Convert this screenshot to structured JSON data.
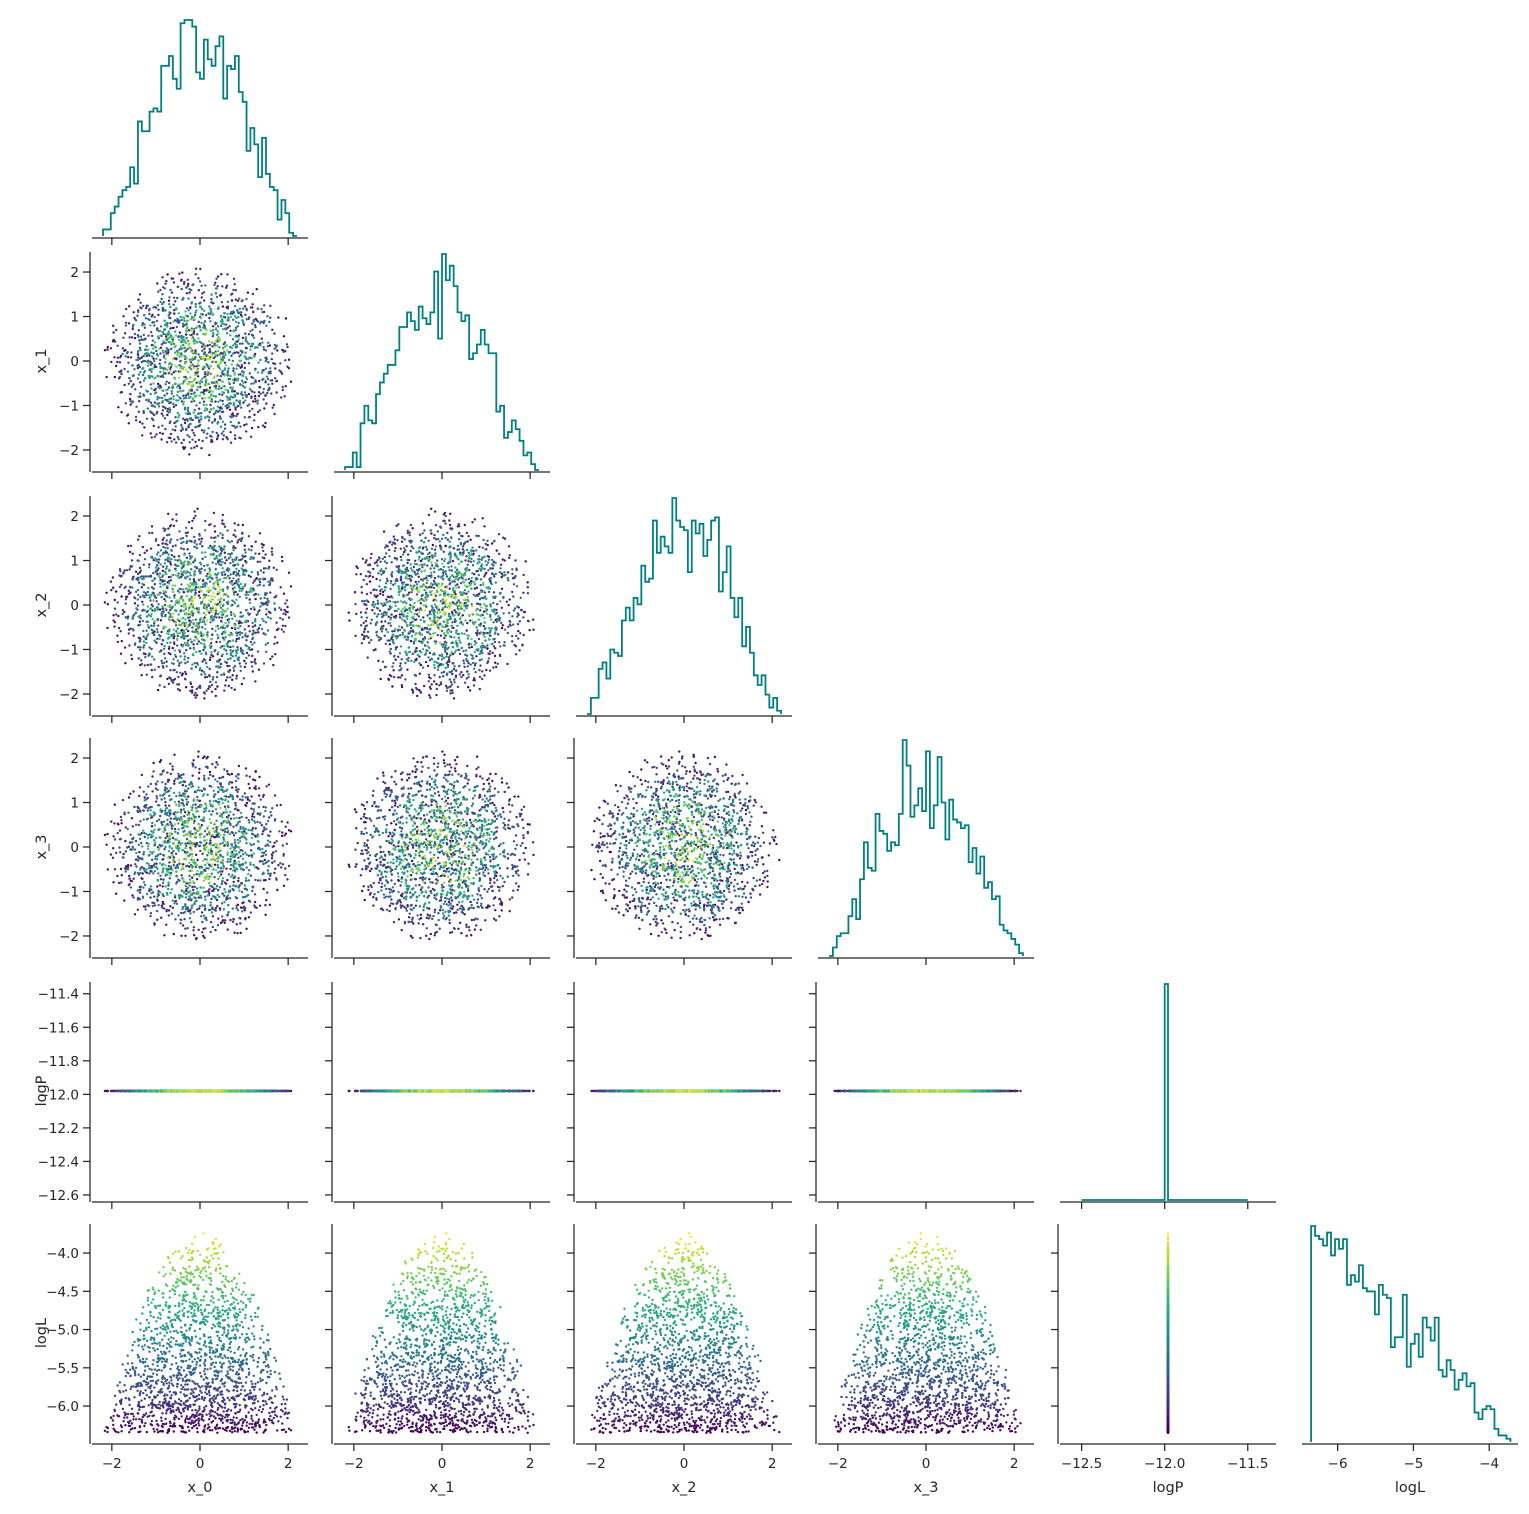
{
  "chart_data": {
    "type": "scatter",
    "subtype": "corner-pair-plot",
    "title": "",
    "variables": [
      "x_0",
      "x_1",
      "x_2",
      "x_3",
      "logP",
      "logL"
    ],
    "axis_labels": [
      "x_0",
      "x_1",
      "x_2",
      "x_3",
      "logP",
      "logL"
    ],
    "ranges": {
      "x_0": [
        -2.45,
        2.45
      ],
      "x_1": [
        -2.45,
        2.45
      ],
      "x_2": [
        -2.45,
        2.45
      ],
      "x_3": [
        -2.45,
        2.45
      ],
      "logP": [
        -12.63,
        -11.33
      ],
      "logL": [
        -6.47,
        -3.62
      ]
    },
    "ticks": {
      "x": {
        "x_0": [
          -2,
          0,
          2
        ],
        "x_1": [
          -2,
          0,
          2
        ],
        "x_2": [
          -2,
          0,
          2
        ],
        "x_3": [
          -2,
          0,
          2
        ],
        "logP": [
          -12.5,
          -12.0,
          -11.5
        ],
        "logL": [
          -6,
          -5,
          -4
        ]
      },
      "y": {
        "x_1": [
          -2,
          -1,
          0,
          1,
          2
        ],
        "x_2": [
          -2,
          -1,
          0,
          1,
          2
        ],
        "x_3": [
          -2,
          -1,
          0,
          1,
          2
        ],
        "logP": [
          -12.6,
          -12.4,
          -12.2,
          -12.0,
          -11.8,
          -11.6,
          -11.4
        ],
        "logL": [
          -6.0,
          -5.5,
          -5.0,
          -4.5,
          -4.0
        ]
      }
    },
    "tick_labels": {
      "x": {
        "x_0": [
          "−2",
          "0",
          "2"
        ],
        "x_1": [
          "−2",
          "0",
          "2"
        ],
        "x_2": [
          "−2",
          "0",
          "2"
        ],
        "x_3": [
          "−2",
          "0",
          "2"
        ],
        "logP": [
          "−12.5",
          "−12.0",
          "−11.5"
        ],
        "logL": [
          "−6",
          "−5",
          "−4"
        ]
      },
      "y": {
        "x_1": [
          "−2",
          "−1",
          "0",
          "1",
          "2"
        ],
        "x_2": [
          "−2",
          "−1",
          "0",
          "1",
          "2"
        ],
        "x_3": [
          "−2",
          "−1",
          "0",
          "1",
          "2"
        ],
        "logP": [
          "−12.6",
          "−12.4",
          "−12.2",
          "−12.0",
          "−11.8",
          "−11.6",
          "−11.4"
        ],
        "logL": [
          "−6.0",
          "−5.5",
          "−5.0",
          "−4.5",
          "−4.0"
        ]
      }
    },
    "sampling": {
      "n_points": 1700,
      "x_distribution": "uniform in 4-D ball of radius 2.2",
      "logP_constant": -11.98,
      "logL_min": -6.35,
      "logL_max": -3.72,
      "color_by": "logL",
      "colormap": "viridis"
    },
    "histograms": {
      "histtype": "step",
      "bins": 50,
      "color": "#008080"
    },
    "grid": false,
    "legend": "none",
    "point_size": 1.2
  }
}
